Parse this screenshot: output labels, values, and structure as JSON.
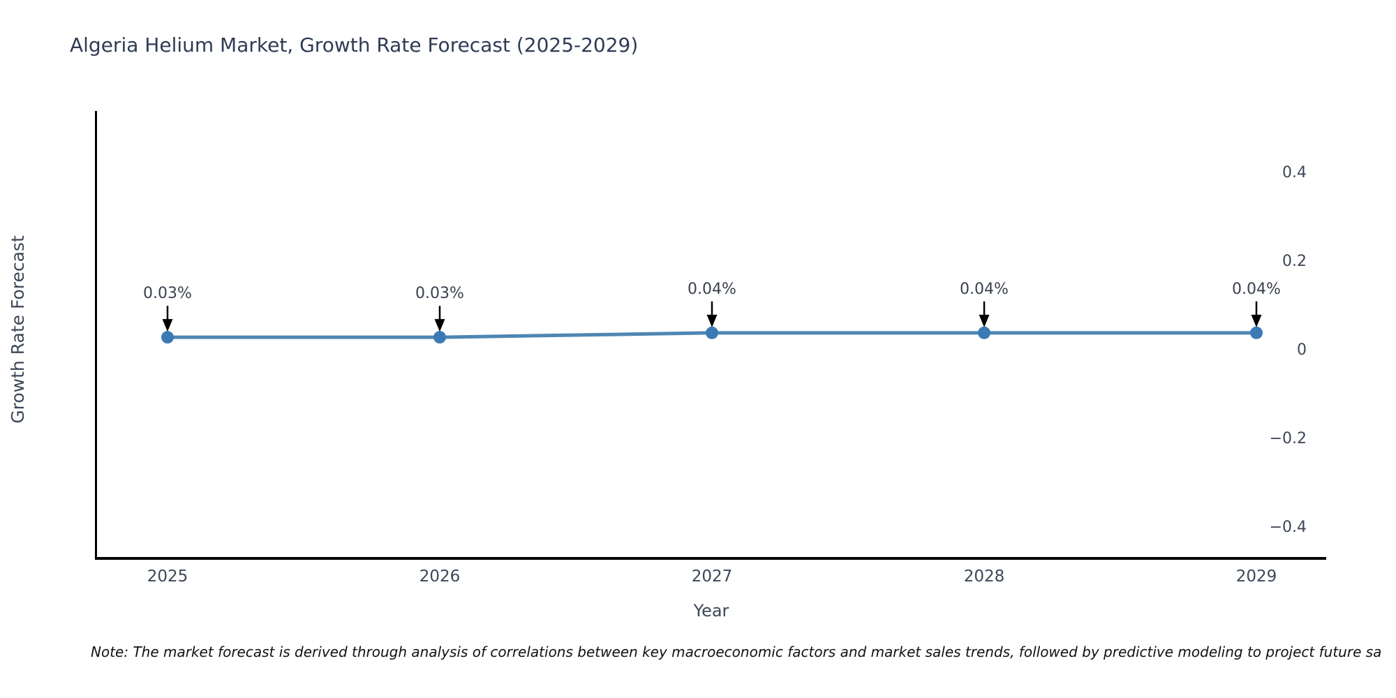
{
  "chart_data": {
    "type": "line",
    "title": "Algeria Helium Market, Growth Rate Forecast (2025-2029)",
    "xlabel": "Year",
    "ylabel": "Growth Rate Forecast",
    "categories": [
      "2025",
      "2026",
      "2027",
      "2028",
      "2029"
    ],
    "series": [
      {
        "name": "Growth Rate Forecast",
        "values": [
          0.03,
          0.03,
          0.04,
          0.04,
          0.04
        ]
      }
    ],
    "annotations": [
      "0.03%",
      "0.03%",
      "0.04%",
      "0.04%",
      "0.04%"
    ],
    "yticks": [
      0.4,
      0.2,
      0,
      -0.2,
      -0.4
    ],
    "ytick_labels": [
      "0.4",
      "0.2",
      "0",
      "−0.2",
      "−0.4"
    ],
    "ylim": [
      -0.469,
      0.539
    ],
    "grid": false,
    "legend_position": "none",
    "line_color": "#4f86b2",
    "marker_color": "#3c7ab5",
    "arrow_color": "#000000",
    "note": "Note: The market forecast is derived through analysis of correlations between key macroeconomic factors and market sales trends, followed by predictive modeling to project future sa"
  }
}
